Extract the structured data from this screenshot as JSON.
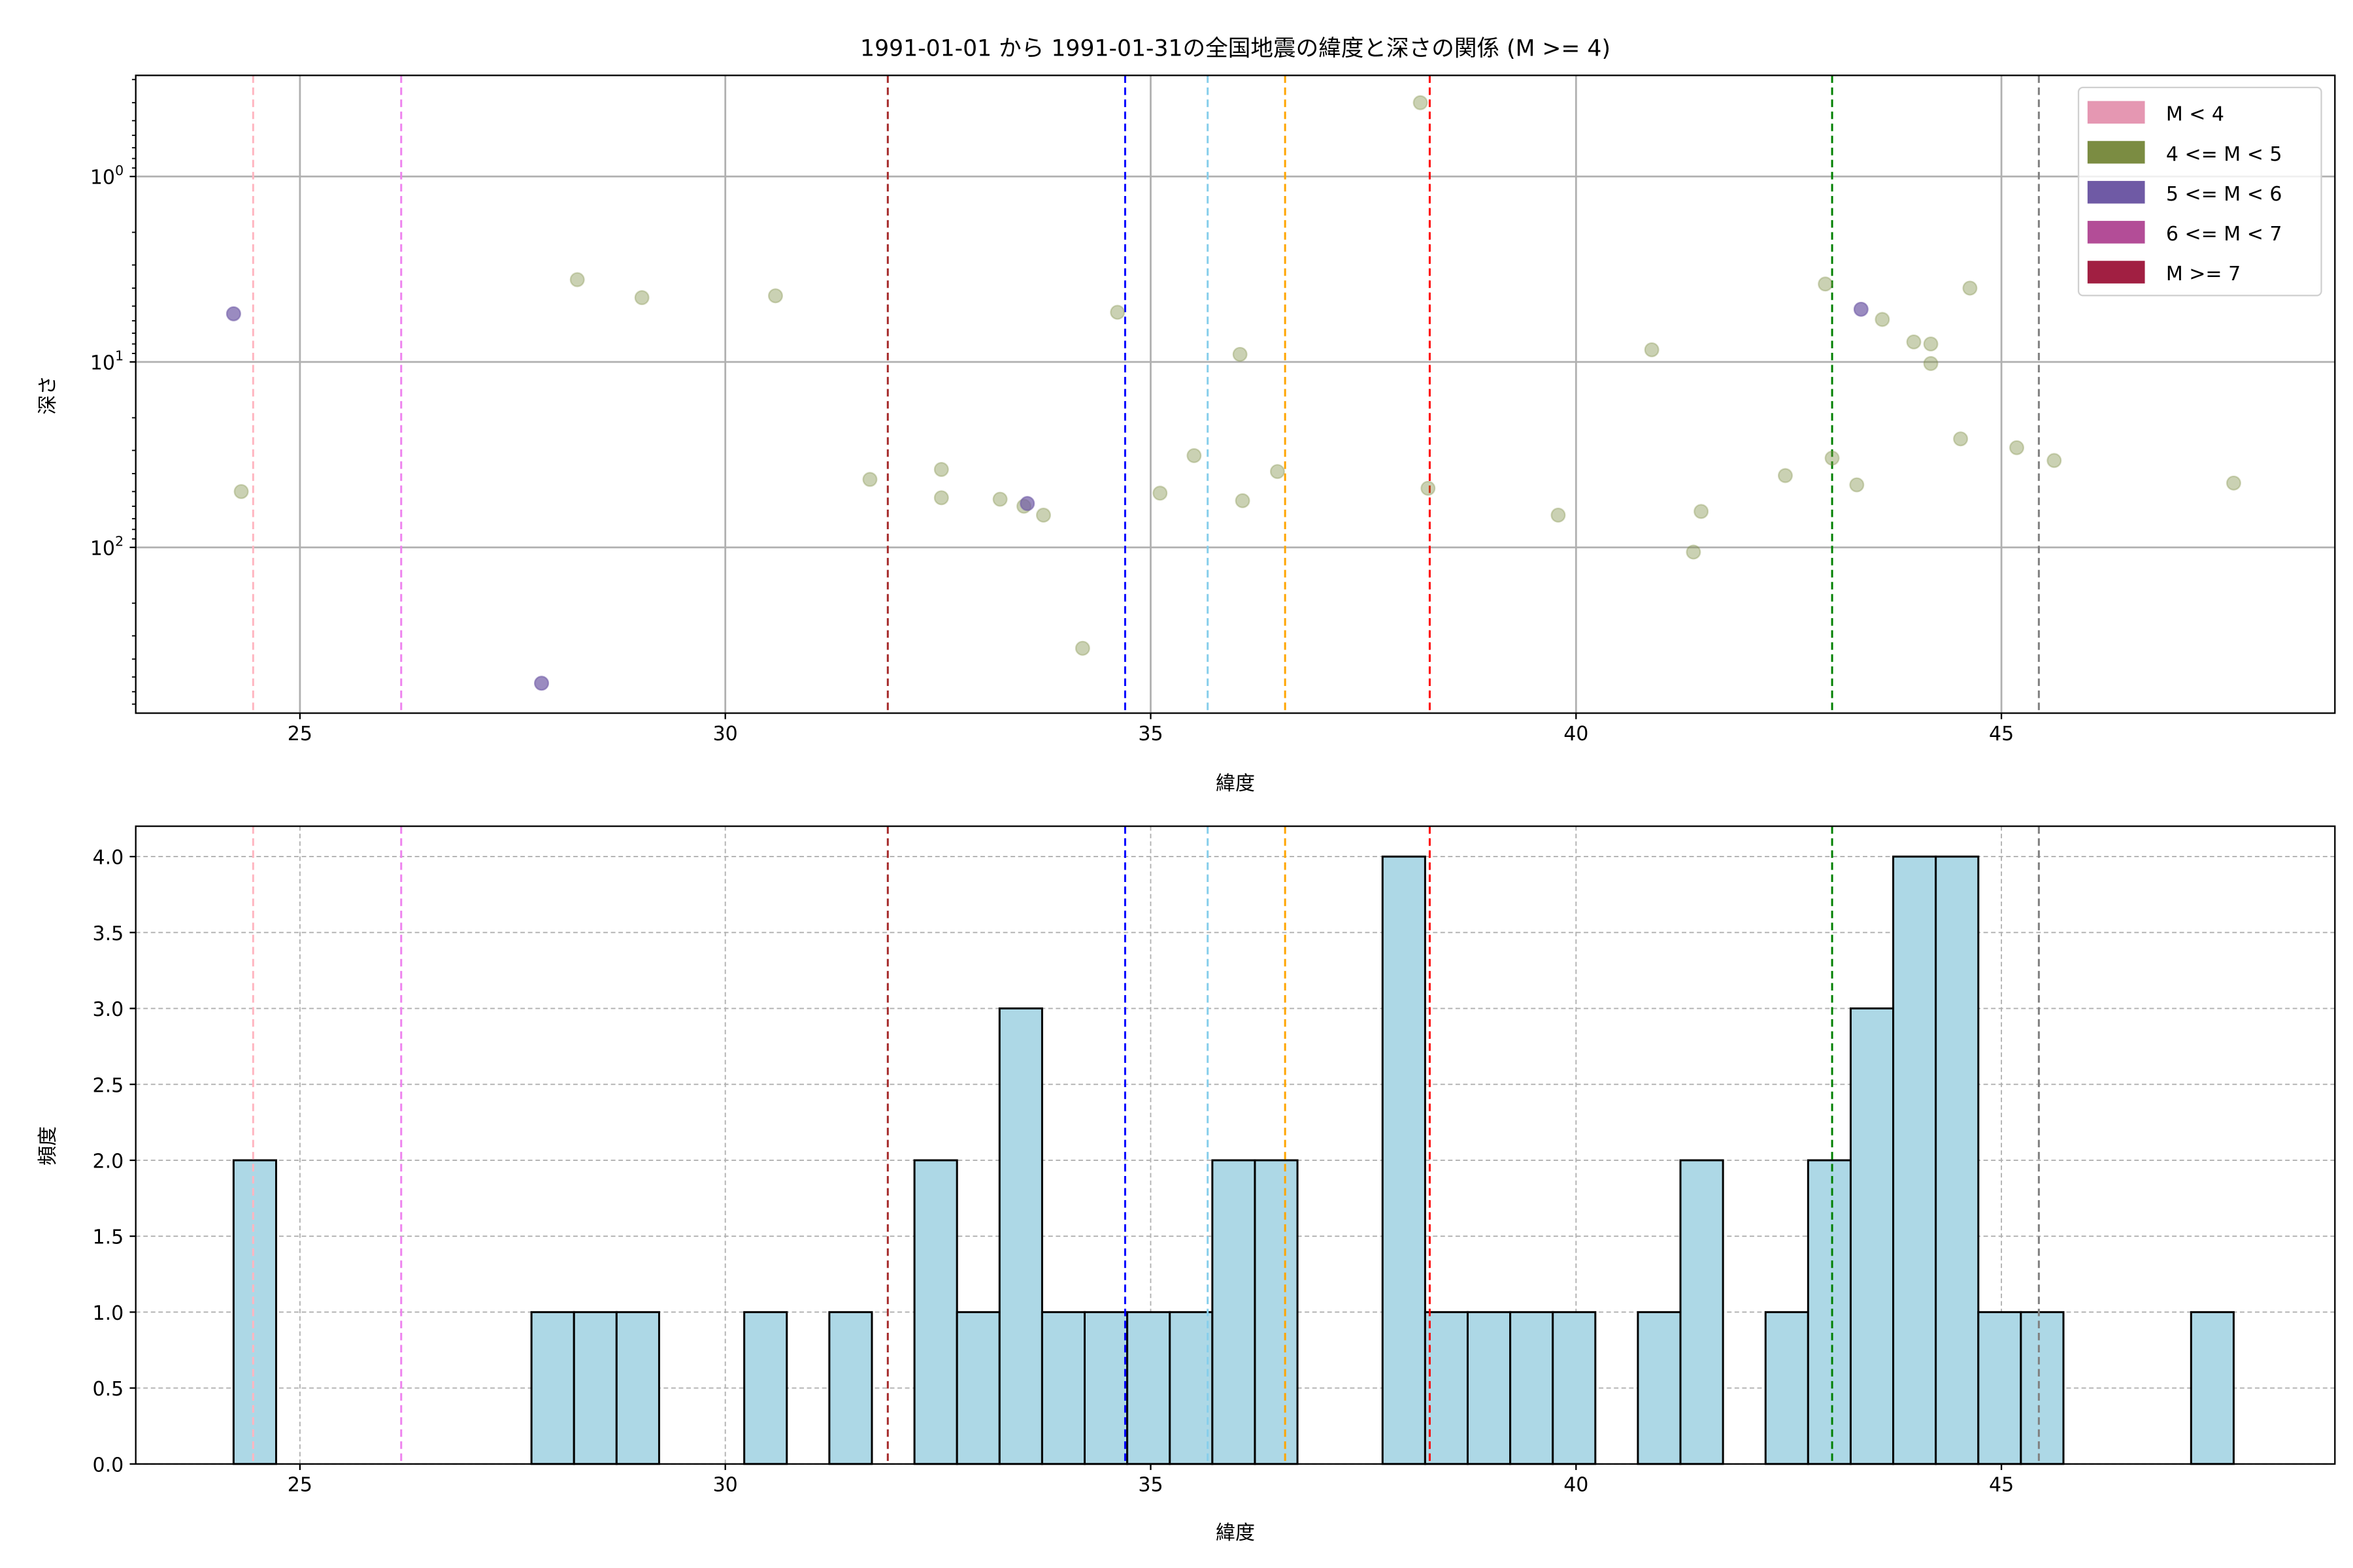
{
  "chart_data": [
    {
      "type": "scatter",
      "title": "1991-01-01 から 1991-01-31の全国地震の緯度と深さの関係 (M >= 4)",
      "xlabel": "緯度",
      "ylabel": "深さ",
      "xlim": [
        23.07,
        48.92
      ],
      "ylim": [
        0.285,
        783
      ],
      "yscale": "log",
      "yinverted": true,
      "xticks": [
        25,
        30,
        35,
        40,
        45
      ],
      "yticks": [
        {
          "value": 1,
          "base": "10",
          "exp": "0"
        },
        {
          "value": 10,
          "base": "10",
          "exp": "1"
        },
        {
          "value": 100,
          "base": "10",
          "exp": "2"
        }
      ],
      "grid": true,
      "legend_position": "top-right",
      "legend": [
        {
          "label": "M < 4",
          "color": "#e597b2"
        },
        {
          "label": "4 <= M < 5",
          "color": "#7b8c42"
        },
        {
          "label": "5 <= M < 6",
          "color": "#6f5aa5"
        },
        {
          "label": "6 <= M < 7",
          "color": "#b34d97"
        },
        {
          "label": "M >= 7",
          "color": "#a11f42"
        }
      ],
      "series": [
        {
          "name": "4 <= M < 5",
          "color": "#7b8c42",
          "alpha": 0.4,
          "points": [
            [
              24.31,
              50
            ],
            [
              28.26,
              3.6
            ],
            [
              29.02,
              4.5
            ],
            [
              30.59,
              4.4
            ],
            [
              31.7,
              43
            ],
            [
              32.54,
              38
            ],
            [
              32.54,
              54
            ],
            [
              33.23,
              55
            ],
            [
              33.51,
              60
            ],
            [
              33.74,
              67
            ],
            [
              34.2,
              350
            ],
            [
              34.61,
              5.4
            ],
            [
              35.11,
              51
            ],
            [
              35.51,
              32
            ],
            [
              36.05,
              9.1
            ],
            [
              36.08,
              56
            ],
            [
              36.49,
              39
            ],
            [
              38.17,
              0.4
            ],
            [
              38.26,
              48
            ],
            [
              39.79,
              67
            ],
            [
              40.89,
              8.6
            ],
            [
              41.38,
              106
            ],
            [
              41.47,
              64
            ],
            [
              42.46,
              41
            ],
            [
              42.93,
              3.8
            ],
            [
              43.01,
              33
            ],
            [
              43.3,
              46
            ],
            [
              43.6,
              5.9
            ],
            [
              43.97,
              7.8
            ],
            [
              44.17,
              8.0
            ],
            [
              44.17,
              10.2
            ],
            [
              44.52,
              26
            ],
            [
              44.63,
              4.0
            ],
            [
              45.18,
              29
            ],
            [
              45.62,
              34
            ],
            [
              47.73,
              45
            ]
          ]
        },
        {
          "name": "5 <= M < 6",
          "color": "#6f5aa5",
          "alpha": 0.7,
          "points": [
            [
              24.22,
              5.5
            ],
            [
              27.84,
              540
            ],
            [
              33.55,
              58
            ],
            [
              43.35,
              5.2
            ]
          ]
        }
      ],
      "vlines": [
        {
          "x": 24.45,
          "color": "#ffb6c1"
        },
        {
          "x": 26.19,
          "color": "#ee82ee"
        },
        {
          "x": 31.91,
          "color": "#a52a2a"
        },
        {
          "x": 34.7,
          "color": "#0000ff"
        },
        {
          "x": 35.67,
          "color": "#87ceeb"
        },
        {
          "x": 36.58,
          "color": "#ffa500"
        },
        {
          "x": 38.28,
          "color": "#ff0000"
        },
        {
          "x": 43.01,
          "color": "#008000"
        },
        {
          "x": 45.44,
          "color": "#808080"
        }
      ]
    },
    {
      "type": "bar",
      "subtype": "histogram",
      "xlabel": "緯度",
      "ylabel": "頻度",
      "xlim": [
        23.07,
        48.92
      ],
      "ylim": [
        0,
        4.2
      ],
      "xticks": [
        25,
        30,
        35,
        40,
        45
      ],
      "yticks": [
        "0.0",
        "0.5",
        "1.0",
        "1.5",
        "2.0",
        "2.5",
        "3.0",
        "3.5",
        "4.0"
      ],
      "grid": true,
      "bar_color": "#add8e6",
      "bin_start": 24.22,
      "bin_end": 47.73,
      "counts": [
        2,
        0,
        0,
        0,
        0,
        0,
        0,
        1,
        1,
        1,
        0,
        0,
        1,
        0,
        1,
        0,
        2,
        1,
        3,
        1,
        1,
        1,
        1,
        2,
        2,
        0,
        0,
        4,
        1,
        1,
        1,
        1,
        0,
        1,
        2,
        0,
        1,
        2,
        3,
        4,
        4,
        1,
        1,
        0,
        0,
        0,
        1
      ]
    }
  ]
}
